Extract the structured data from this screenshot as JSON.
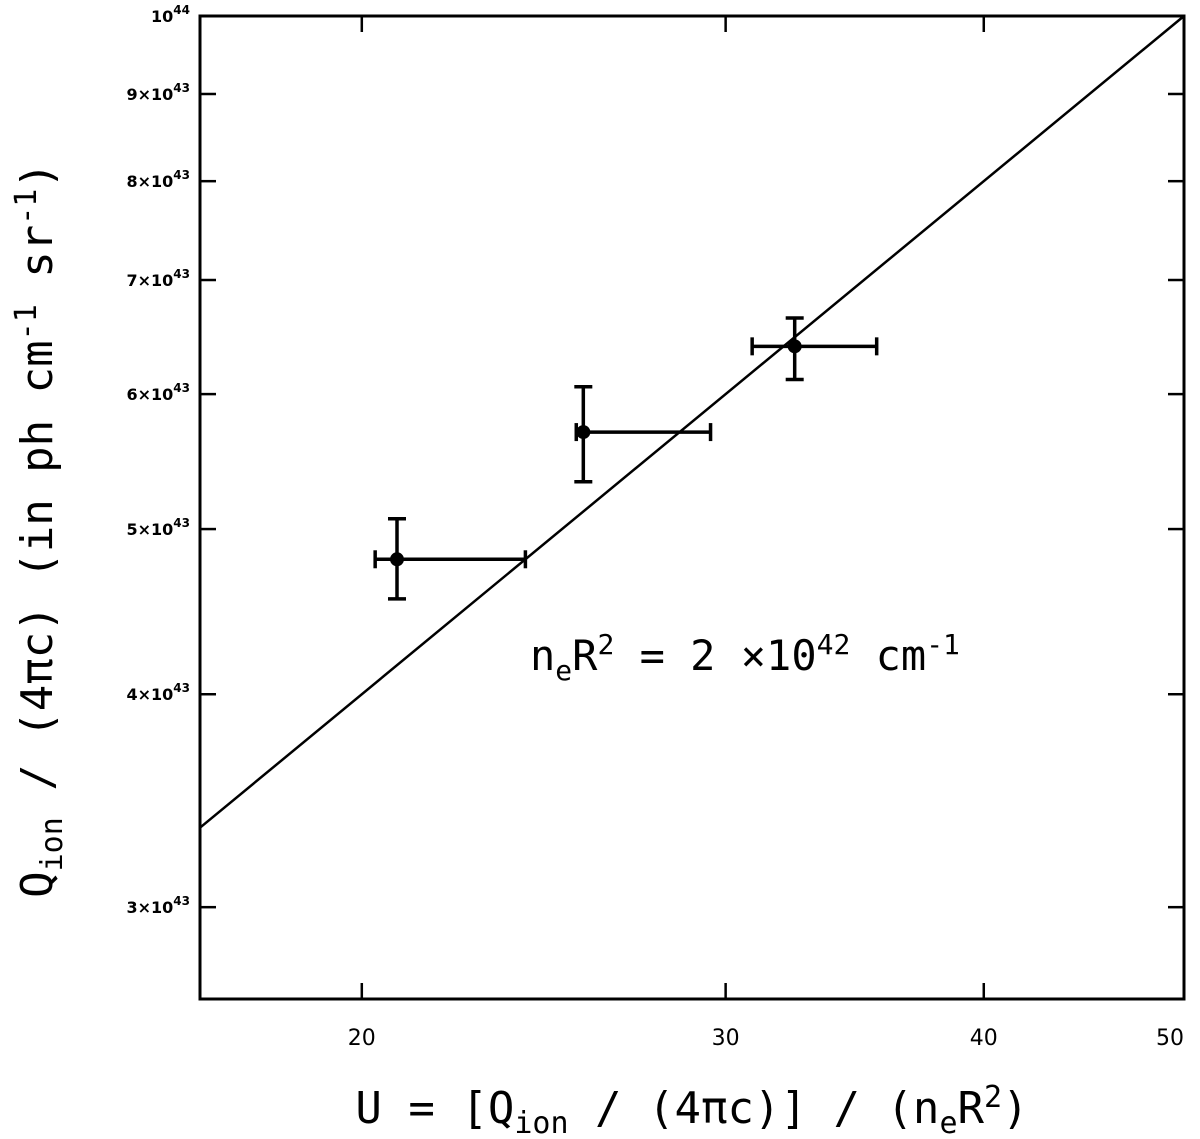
{
  "chart_data": {
    "type": "scatter",
    "xscale": "log",
    "yscale": "log",
    "xlim": [
      16.7,
      50
    ],
    "ylim": [
      2.65e+43,
      1e+44
    ],
    "xticks": [
      {
        "value": 20,
        "label": "20"
      },
      {
        "value": 30,
        "label": "30"
      },
      {
        "value": 40,
        "label": "40"
      },
      {
        "value": 50,
        "label": "50"
      }
    ],
    "yticks": [
      {
        "value": 3e+43,
        "mant": "3×10",
        "exp": "43"
      },
      {
        "value": 4e+43,
        "mant": "4×10",
        "exp": "43"
      },
      {
        "value": 5e+43,
        "mant": "5×10",
        "exp": "43"
      },
      {
        "value": 6e+43,
        "mant": "6×10",
        "exp": "43"
      },
      {
        "value": 7e+43,
        "mant": "7×10",
        "exp": "43"
      },
      {
        "value": 8e+43,
        "mant": "8×10",
        "exp": "43"
      },
      {
        "value": 9e+43,
        "mant": "9×10",
        "exp": "43"
      },
      {
        "value": 1e+44,
        "mant": "10",
        "exp": "44"
      }
    ],
    "points": [
      {
        "x": 20.8,
        "y": 4.8e+43,
        "xerr": [
          20.3,
          24.0
        ],
        "yerr": [
          4.55e+43,
          5.07e+43
        ]
      },
      {
        "x": 25.6,
        "y": 5.7e+43,
        "xerr": [
          25.4,
          29.5
        ],
        "yerr": [
          5.33e+43,
          6.06e+43
        ]
      },
      {
        "x": 32.4,
        "y": 6.4e+43,
        "xerr": [
          30.9,
          35.5
        ],
        "yerr": [
          6.12e+43,
          6.65e+43
        ]
      }
    ],
    "fit_line": {
      "x": [
        16.7,
        50
      ],
      "y": [
        3.34e+43,
        1e+44
      ]
    },
    "xlabel": {
      "pre": "U = [Q",
      "sub1": "ion",
      "mid": " / (4πc)] / (n",
      "sub2": "e",
      "post": "R",
      "sup": "2",
      "end": ")"
    },
    "ylabel": {
      "q": "Q",
      "sub": "ion",
      "mid": " / (4πc) (in ph cm",
      "sup1": "-1",
      "mid2": " sr",
      "sup2": "-1",
      "end": ")"
    },
    "annotation": {
      "n": "n",
      "sub": "e",
      "r": "R",
      "sup": "2",
      "mid": " = 2 ×10",
      "sup2": "42",
      "unit": " cm",
      "sup3": "-1"
    }
  }
}
